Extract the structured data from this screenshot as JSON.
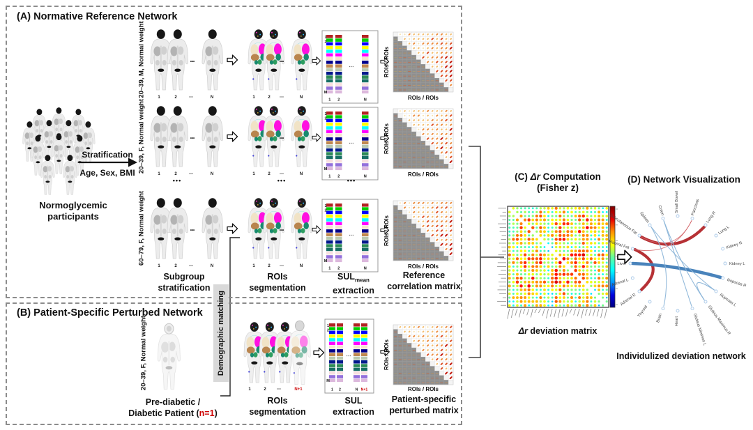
{
  "panelA": {
    "title": "(A) Normative Reference Network",
    "crowd_label_line1": "Normoglycemic",
    "crowd_label_line2": "participants",
    "strat_label_top": "Stratification",
    "strat_label_bottom": "Age, Sex, BMI",
    "rows": [
      {
        "group_label": "20–39, M, Normal weight"
      },
      {
        "group_label": "20–39, F, Normal weight"
      },
      {
        "group_label": "60–79, F, Normal weight"
      }
    ],
    "scan_numbers": [
      "1",
      "2",
      "⋯",
      "N"
    ],
    "sul_row_labels": [
      "1",
      "2",
      "M"
    ],
    "sul_col_labels": [
      "1",
      "2",
      "N"
    ],
    "matrix_axis": "ROIs / ROIs",
    "ellipsis": "•••",
    "captions": {
      "col1_line1": "Subgroup",
      "col1_line2": "stratification",
      "col2_line1": "ROIs",
      "col2_line2": "segmentation",
      "col3_main": "SUL",
      "col3_sub": "mean",
      "col3_line2": "extraction",
      "col4_line1": "Reference",
      "col4_line2": "correlation matrix"
    }
  },
  "panelB": {
    "title": "(B) Patient-Specific Perturbed Network",
    "group_label": "20–39, F, Normal weight",
    "patient_caption_line1": "Pre-diabetic /",
    "patient_caption_line2_pre": "Diabetic Patient (",
    "patient_caption_line2_red": "n=1",
    "patient_caption_line2_post": ")",
    "scan_numbers": [
      "1",
      "2",
      "⋯"
    ],
    "scan_number_red": "N+1",
    "sul_row_labels": [
      "1",
      "2",
      "M"
    ],
    "sul_col_labels": [
      "1",
      "2",
      "N"
    ],
    "sul_col_label_red": "N+1",
    "matrix_axis": "ROIs / ROIs",
    "captions": {
      "col2_line1": "ROIs",
      "col2_line2": "segmentation",
      "col3_line1": "SUL",
      "col3_line2": "extraction",
      "col4_line1": "Patient-specific",
      "col4_line2": "perturbed matrix"
    }
  },
  "connector": {
    "demographic_label": "Demographic matching"
  },
  "panelC": {
    "title_pre": "(C) ",
    "title_italic": "Δr",
    "title_post": " Computation",
    "title_line2": "(Fisher z)",
    "caption_italic": "Δr",
    "caption_post": " deviation matrix"
  },
  "panelD": {
    "title": "(D) Network Visualization",
    "caption": "Individulized deviation network",
    "nodes": [
      "Small Bowel",
      "Pancreas",
      "Lung R",
      "Lung L",
      "Kidney R",
      "Kidney L",
      "Iliopsoas R",
      "Iliopsoas L",
      "Gluteus Maximus R",
      "Gluteus Minimus L",
      "Heart",
      "Brain",
      "Thyroid",
      "Adrenal R",
      "Adrenal L",
      "Liver",
      "Visceral Fat",
      "Subcutaneous Fat",
      "Spleen",
      "Colon"
    ],
    "edges": [
      {
        "a": "Subcutaneous Fat",
        "b": "Lung R",
        "color": "#b01f24",
        "width": 4.2
      },
      {
        "a": "Visceral Fat",
        "b": "Adrenal R",
        "color": "#b01f24",
        "width": 4.2
      },
      {
        "a": "Visceral Fat",
        "b": "Pancreas",
        "color": "#d4666a",
        "width": 0.9
      },
      {
        "a": "Subcutaneous Fat",
        "b": "Pancreas",
        "color": "#d4666a",
        "width": 0.9
      },
      {
        "a": "Liver",
        "b": "Iliopsoas R",
        "color": "#3a78b5",
        "width": 4.6
      },
      {
        "a": "Spleen",
        "b": "Brain",
        "color": "#8ab4d8",
        "width": 1.1
      },
      {
        "a": "Colon",
        "b": "Gluteus Minimus L",
        "color": "#8ab4d8",
        "width": 1.1
      },
      {
        "a": "Colon",
        "b": "Gluteus Maximus R",
        "color": "#8ab4d8",
        "width": 1.1
      },
      {
        "a": "Iliopsoas L",
        "b": "Gluteus Maximus R",
        "color": "#8ab4d8",
        "width": 1.3
      },
      {
        "a": "Spleen",
        "b": "Iliopsoas L",
        "color": "#8ab4d8",
        "width": 1.0
      }
    ]
  },
  "graphics": {
    "sul_colors": [
      "#b22222",
      "#00cc00",
      "#0000ff",
      "#ffff00",
      "#00ffff",
      "#ff00ff",
      "#f5e7cd",
      "#00008b",
      "#c08850",
      "#b8c8b0",
      "#001a8c",
      "#2e8b57",
      "#176f66",
      "#f8e0e0",
      "#9370db",
      "#dcb8dc"
    ],
    "corr_seeds": [
      7,
      8,
      9
    ],
    "patient_corr_seed": 11,
    "dev_seed": 13,
    "accent_red": "#cc0000",
    "colorbar": [
      "#7f0000",
      "#e60000",
      "#ff8c00",
      "#ffff00",
      "#66ff99",
      "#00ffff",
      "#0099ff",
      "#0000dd",
      "#000080"
    ]
  }
}
